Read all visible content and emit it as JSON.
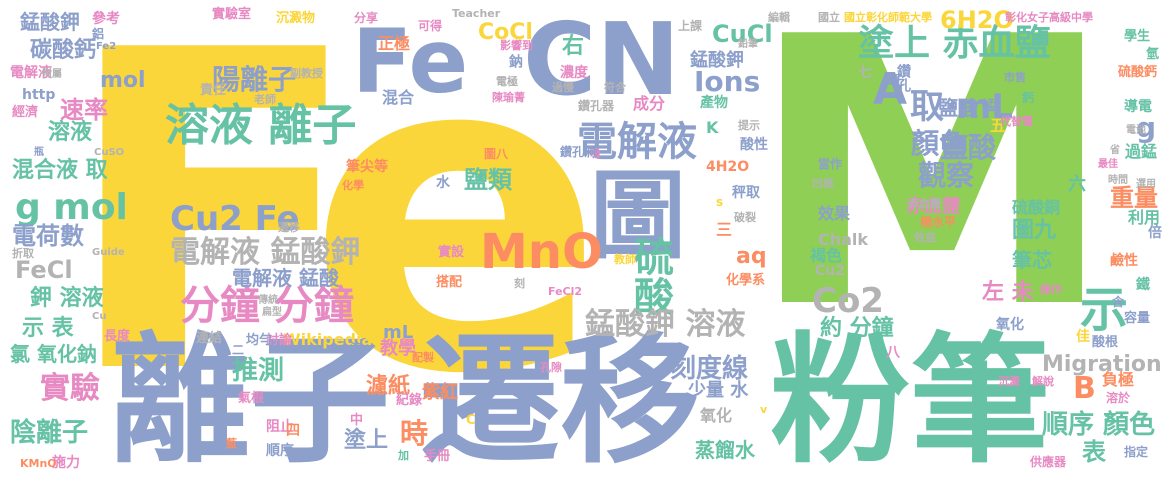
{
  "palette": {
    "yellow": "#fbd63a",
    "green": "#8fcf55",
    "teal": "#66c2a5",
    "blue": "#8da0cb",
    "pink": "#e78ac3",
    "orange": "#fc8d62",
    "lightgreen": "#a6d854",
    "tan": "#e5c494",
    "gray": "#b3b3b3"
  },
  "words": [
    {
      "text": "Fe",
      "color": "#fbd63a"
    },
    {
      "text": "M",
      "color": "#8fcf55"
    },
    {
      "text": "離子",
      "color": "#8da0cb"
    },
    {
      "text": "遷移",
      "color": "#8da0cb"
    },
    {
      "text": "粉筆",
      "color": "#66c2a5"
    },
    {
      "text": "Fe",
      "color": "#8da0cb"
    },
    {
      "text": "CN",
      "color": "#8da0cb"
    },
    {
      "text": "圖",
      "color": "#8da0cb"
    },
    {
      "text": "MnO",
      "color": "#fc8d62"
    },
    {
      "text": "溶液 離子",
      "color": "#66c2a5"
    },
    {
      "text": "電解液",
      "color": "#8da0cb"
    },
    {
      "text": "硫酸",
      "color": "#66c2a5"
    },
    {
      "text": "分鐘 分鐘",
      "color": "#e78ac3"
    },
    {
      "text": "示",
      "color": "#66c2a5"
    },
    {
      "text": "A",
      "color": "#8da0cb"
    },
    {
      "text": "取 mL",
      "color": "#8da0cb"
    },
    {
      "text": "塗上 赤血鹽",
      "color": "#66c2a5"
    },
    {
      "text": "g mol",
      "color": "#66c2a5"
    },
    {
      "text": "Cu2 Fe",
      "color": "#8da0cb"
    },
    {
      "text": "電解液 錳酸鉀",
      "color": "#b3b3b3"
    },
    {
      "text": "錳酸鉀 溶液",
      "color": "#b3b3b3"
    },
    {
      "text": "Co2",
      "color": "#b3b3b3"
    },
    {
      "text": "實驗",
      "color": "#e78ac3"
    },
    {
      "text": "陽離子",
      "color": "#8da0cb"
    },
    {
      "text": "鹽酸",
      "color": "#8da0cb"
    },
    {
      "text": "顏色",
      "color": "#8da0cb"
    },
    {
      "text": "觀察",
      "color": "#8da0cb"
    },
    {
      "text": "推測",
      "color": "#66c2a5"
    },
    {
      "text": "刻度線",
      "color": "#8da0cb"
    },
    {
      "text": "Ions",
      "color": "#8da0cb"
    },
    {
      "text": "6H2O",
      "color": "#fbd63a"
    },
    {
      "text": "CuCl",
      "color": "#66c2a5"
    },
    {
      "text": "CoCl",
      "color": "#fbd63a"
    },
    {
      "text": "鹽類",
      "color": "#66c2a5"
    },
    {
      "text": "時",
      "color": "#fc8d62"
    },
    {
      "text": "B",
      "color": "#fc8d62"
    },
    {
      "text": "Migration",
      "color": "#b3b3b3"
    },
    {
      "text": "順序 顏色",
      "color": "#66c2a5"
    },
    {
      "text": "陰離子",
      "color": "#66c2a5"
    },
    {
      "text": "重量",
      "color": "#fc8d62"
    },
    {
      "text": "FeCl",
      "color": "#b3b3b3"
    },
    {
      "text": "電荷數",
      "color": "#8da0cb"
    },
    {
      "text": "速率",
      "color": "#e78ac3"
    },
    {
      "text": "混合液 取",
      "color": "#66c2a5"
    },
    {
      "text": "碳酸鈣",
      "color": "#8da0cb"
    },
    {
      "text": "鉀 溶液",
      "color": "#66c2a5"
    },
    {
      "text": "示 表",
      "color": "#66c2a5"
    },
    {
      "text": "約 分鐘",
      "color": "#66c2a5"
    },
    {
      "text": "電解液 錳酸",
      "color": "#8da0cb"
    },
    {
      "text": "圖九",
      "color": "#66c2a5"
    },
    {
      "text": "赤血鹽",
      "color": "#e78ac3"
    },
    {
      "text": "筆芯",
      "color": "#66c2a5"
    },
    {
      "text": "左 未",
      "color": "#e78ac3"
    },
    {
      "text": "aq",
      "color": "#fc8d62"
    },
    {
      "text": "表",
      "color": "#66c2a5"
    },
    {
      "text": "濾紙",
      "color": "#fc8d62"
    },
    {
      "text": "蒸餾水",
      "color": "#66c2a5"
    },
    {
      "text": "塗上",
      "color": "#8da0cb"
    },
    {
      "text": "氧化",
      "color": "#b3b3b3"
    },
    {
      "text": "少量 水",
      "color": "#8da0cb"
    },
    {
      "text": "氯 氧化鈉",
      "color": "#66c2a5"
    },
    {
      "text": "錳酸鉀",
      "color": "#8da0cb"
    },
    {
      "text": "錳酸鉀",
      "color": "#8da0cb"
    },
    {
      "text": "mol",
      "color": "#8da0cb"
    },
    {
      "text": "溶液",
      "color": "#66c2a5"
    },
    {
      "text": "正極",
      "color": "#fc8d62"
    },
    {
      "text": "右",
      "color": "#66c2a5"
    },
    {
      "text": "鹽酸",
      "color": "#8da0cb"
    },
    {
      "text": "g",
      "color": "#8da0cb"
    },
    {
      "text": "水",
      "color": "#8da0cb"
    },
    {
      "text": "負極",
      "color": "#fc8d62"
    },
    {
      "text": "效果",
      "color": "#8da0cb"
    },
    {
      "text": "過錳",
      "color": "#66c2a5"
    },
    {
      "text": "利用",
      "color": "#66c2a5"
    },
    {
      "text": "褐色",
      "color": "#66c2a5"
    },
    {
      "text": "紫紅",
      "color": "#fc8d62"
    },
    {
      "text": "電解液",
      "color": "#e78ac3"
    },
    {
      "text": "成分",
      "color": "#e78ac3"
    },
    {
      "text": "mL",
      "color": "#8da0cb"
    },
    {
      "text": "Wikipedia",
      "color": "#fbd63a"
    },
    {
      "text": "Chalk",
      "color": "#b3b3b3"
    },
    {
      "text": "Cu2",
      "color": "#b3b3b3"
    },
    {
      "text": "http",
      "color": "#8da0cb"
    },
    {
      "text": "濃度",
      "color": "#e78ac3"
    },
    {
      "text": "混合",
      "color": "#8da0cb"
    },
    {
      "text": "不易",
      "color": "#fbd63a"
    },
    {
      "text": "參考",
      "color": "#e78ac3"
    },
    {
      "text": "鈉",
      "color": "#8da0cb"
    },
    {
      "text": "鋁",
      "color": "#8da0cb"
    },
    {
      "text": "實驗室",
      "color": "#e78ac3"
    },
    {
      "text": "沉澱物",
      "color": "#fbd63a"
    },
    {
      "text": "分享",
      "color": "#e78ac3"
    },
    {
      "text": "可得",
      "color": "#e78ac3"
    },
    {
      "text": "Teacher",
      "color": "#b3b3b3"
    },
    {
      "text": "上課",
      "color": "#b3b3b3"
    },
    {
      "text": "編輯",
      "color": "#b3b3b3"
    },
    {
      "text": "國立",
      "color": "#b3b3b3"
    },
    {
      "text": "國立彰化師範大學",
      "color": "#fbd63a"
    },
    {
      "text": "彰化女子高級中學",
      "color": "#e78ac3"
    },
    {
      "text": "學生",
      "color": "#66c2a5"
    },
    {
      "text": "氫",
      "color": "#66c2a5"
    },
    {
      "text": "硫酸鈣",
      "color": "#fc8d62"
    },
    {
      "text": "導電",
      "color": "#66c2a5"
    },
    {
      "text": "電池",
      "color": "#b3b3b3"
    },
    {
      "text": "省",
      "color": "#b3b3b3"
    },
    {
      "text": "最佳",
      "color": "#e78ac3"
    },
    {
      "text": "時間",
      "color": "#b3b3b3"
    },
    {
      "text": "選用",
      "color": "#b3b3b3"
    },
    {
      "text": "倍",
      "color": "#8da0cb"
    },
    {
      "text": "鹼性",
      "color": "#fc8d62"
    },
    {
      "text": "鐵",
      "color": "#66c2a5"
    },
    {
      "text": "含",
      "color": "#8da0cb"
    },
    {
      "text": "容量",
      "color": "#8da0cb"
    },
    {
      "text": "酸根",
      "color": "#8da0cb"
    },
    {
      "text": "溶於",
      "color": "#e78ac3"
    },
    {
      "text": "指定",
      "color": "#8da0cb"
    },
    {
      "text": "供應器",
      "color": "#e78ac3"
    },
    {
      "text": "解說",
      "color": "#e78ac3"
    },
    {
      "text": "沉澱",
      "color": "#e78ac3"
    },
    {
      "text": "八",
      "color": "#e78ac3"
    },
    {
      "text": "佳",
      "color": "#fbd63a"
    },
    {
      "text": "操作",
      "color": "#e78ac3"
    },
    {
      "text": "氧化",
      "color": "#8da0cb"
    },
    {
      "text": "六",
      "color": "#66c2a5"
    },
    {
      "text": "五",
      "color": "#fbd63a"
    },
    {
      "text": "七",
      "color": "#b3b3b3"
    },
    {
      "text": "錳",
      "color": "#8da0cb"
    },
    {
      "text": "鉀",
      "color": "#8da0cb"
    },
    {
      "text": "鈣",
      "color": "#66c2a5"
    },
    {
      "text": "市售",
      "color": "#8da0cb"
    },
    {
      "text": "鑽孔",
      "color": "#8da0cb"
    },
    {
      "text": "代替電",
      "color": "#e78ac3"
    },
    {
      "text": "酸性",
      "color": "#8da0cb"
    },
    {
      "text": "當作",
      "color": "#8da0cb"
    },
    {
      "text": "凹痕",
      "color": "#b3b3b3"
    },
    {
      "text": "赤血鹽",
      "color": "#b3b3b3"
    },
    {
      "text": "楊水平",
      "color": "#fc8d62"
    },
    {
      "text": "效益",
      "color": "#b3b3b3"
    },
    {
      "text": "硫酸銅",
      "color": "#66c2a5"
    },
    {
      "text": "提示",
      "color": "#b3b3b3"
    },
    {
      "text": "產物",
      "color": "#66c2a5"
    },
    {
      "text": "秤取",
      "color": "#8da0cb"
    },
    {
      "text": "4H2O",
      "color": "#fc8d62"
    },
    {
      "text": "s",
      "color": "#fbd63a"
    },
    {
      "text": "破裂",
      "color": "#b3b3b3"
    },
    {
      "text": "三",
      "color": "#fc8d62"
    },
    {
      "text": "K",
      "color": "#66c2a5"
    },
    {
      "text": "鑽孔器",
      "color": "#b3b3b3"
    },
    {
      "text": "符合",
      "color": "#b3b3b3"
    },
    {
      "text": "過慢",
      "color": "#b3b3b3"
    },
    {
      "text": "電極",
      "color": "#b3b3b3"
    },
    {
      "text": "陳瑜菁",
      "color": "#e78ac3"
    },
    {
      "text": "吸",
      "color": "#e78ac3"
    },
    {
      "text": "鑽孔洞",
      "color": "#8da0cb"
    },
    {
      "text": "圖八",
      "color": "#fc8d62"
    },
    {
      "text": "筆尖等",
      "color": "#fc8d62"
    },
    {
      "text": "化學",
      "color": "#fc8d62"
    },
    {
      "text": "化學科",
      "color": "#fbd63a"
    },
    {
      "text": "先",
      "color": "#fbd63a"
    },
    {
      "text": "遷移",
      "color": "#b3b3b3"
    },
    {
      "text": "實設",
      "color": "#e78ac3"
    },
    {
      "text": "教師",
      "color": "#fbd63a"
    },
    {
      "text": "刻",
      "color": "#b3b3b3"
    },
    {
      "text": "搭配",
      "color": "#fc8d62"
    },
    {
      "text": "FeCl2",
      "color": "#e78ac3"
    },
    {
      "text": "化學系",
      "color": "#fc8d62"
    },
    {
      "text": "CuSO",
      "color": "#b3b3b3"
    },
    {
      "text": "Guide",
      "color": "#b3b3b3"
    },
    {
      "text": "折取",
      "color": "#b3b3b3"
    },
    {
      "text": "Cu",
      "color": "#b3b3b3"
    },
    {
      "text": "長度",
      "color": "#e78ac3"
    },
    {
      "text": "二",
      "color": "#8da0cb"
    },
    {
      "text": "討論",
      "color": "#e78ac3"
    },
    {
      "text": "均勻",
      "color": "#8da0cb"
    },
    {
      "text": "溶",
      "color": "#8da0cb"
    },
    {
      "text": "教學",
      "color": "#e78ac3"
    },
    {
      "text": "配製",
      "color": "#fc8d62"
    },
    {
      "text": "連結",
      "color": "#b3b3b3"
    },
    {
      "text": "氣根",
      "color": "#e78ac3"
    },
    {
      "text": "藍",
      "color": "#fc8d62"
    },
    {
      "text": "阻止",
      "color": "#e78ac3"
    },
    {
      "text": "四",
      "color": "#fc8d62"
    },
    {
      "text": "順序",
      "color": "#8da0cb"
    },
    {
      "text": "中",
      "color": "#e78ac3"
    },
    {
      "text": "紀錄",
      "color": "#e78ac3"
    },
    {
      "text": "加",
      "color": "#66c2a5"
    },
    {
      "text": "手冊",
      "color": "#e78ac3"
    },
    {
      "text": "C",
      "color": "#fbd63a"
    },
    {
      "text": "v",
      "color": "#fbd63a"
    },
    {
      "text": "孔隙",
      "color": "#e78ac3"
    },
    {
      "text": "施力",
      "color": "#e78ac3"
    },
    {
      "text": "KMnO",
      "color": "#fc8d62"
    },
    {
      "text": "傳統",
      "color": "#b3b3b3"
    },
    {
      "text": "扁型",
      "color": "#b3b3b3"
    },
    {
      "text": "附屬",
      "color": "#b3b3b3"
    },
    {
      "text": "老師",
      "color": "#b3b3b3"
    },
    {
      "text": "副教授",
      "color": "#b3b3b3"
    },
    {
      "text": "影響到",
      "color": "#e78ac3"
    },
    {
      "text": "經濟",
      "color": "#e78ac3"
    },
    {
      "text": "瓶",
      "color": "#8da0cb"
    },
    {
      "text": "責任",
      "color": "#b3b3b3"
    },
    {
      "text": "Fe2",
      "color": "#8da0cb"
    },
    {
      "text": "鉛筆",
      "color": "#b3b3b3"
    },
    {
      "text": "電解",
      "color": "#b3b3b3"
    }
  ]
}
